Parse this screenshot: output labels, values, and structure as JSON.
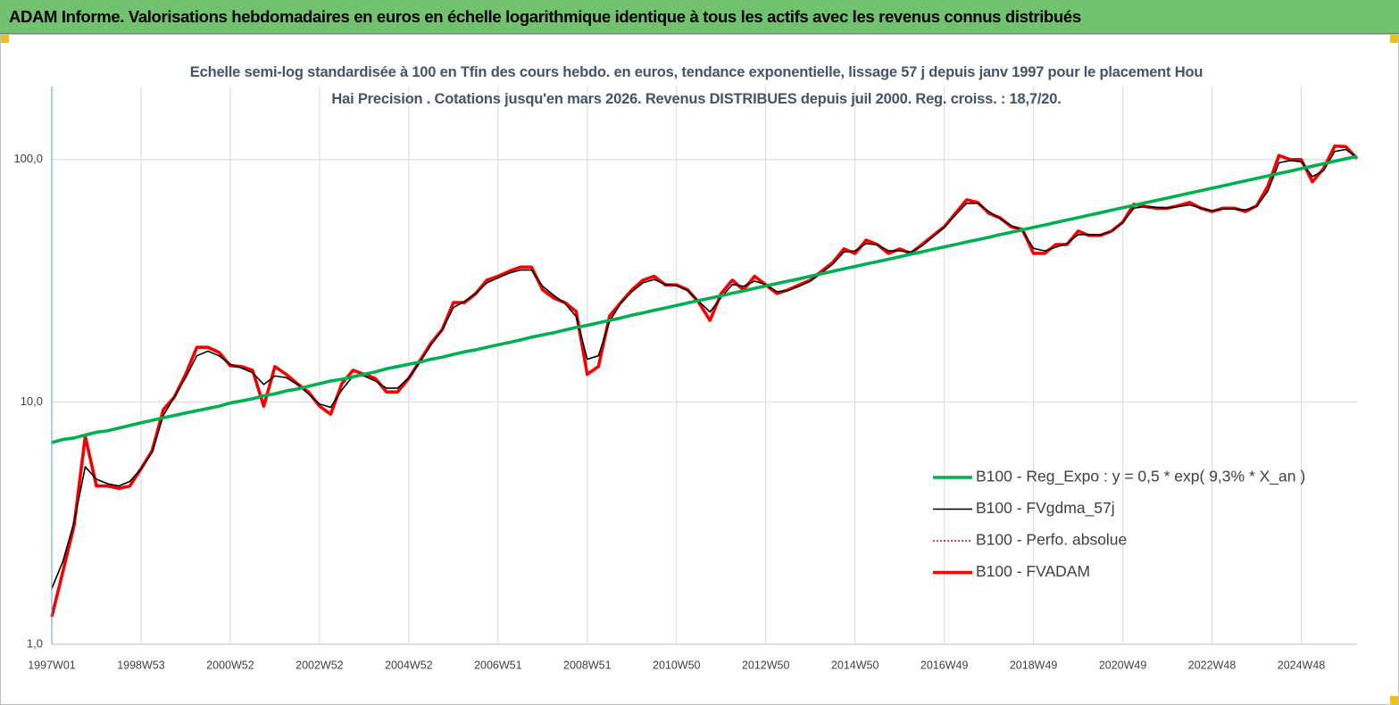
{
  "header": {
    "title": "ADAM Informe. Valorisations hebdomadaires en euros en échelle logarithmique identique à tous les actifs avec les revenus connus distribués"
  },
  "chart_data": {
    "type": "line",
    "title": "Echelle semi-log standardisée à 100 en Tfin des cours hebdo. en euros, tendance exponentielle, lissage 57 j depuis janv 1997 pour le placement Hou Hai Precision . Cotations jusqu'en mars 2026. Revenus DISTRIBUES depuis juil 2000. Reg. croiss. : 18,7/20.",
    "yscale": "log",
    "grid": true,
    "legend": "right",
    "ylim": [
      1,
      200
    ],
    "yticks": [
      {
        "value": 1,
        "label": "1,0"
      },
      {
        "value": 10,
        "label": "10,0"
      },
      {
        "value": 100,
        "label": "100,0"
      }
    ],
    "categories": [
      "1997W01",
      null,
      null,
      null,
      null,
      null,
      null,
      null,
      "1998W53",
      null,
      null,
      null,
      null,
      null,
      null,
      null,
      "2000W52",
      null,
      null,
      null,
      null,
      null,
      null,
      null,
      "2002W52",
      null,
      null,
      null,
      null,
      null,
      null,
      null,
      "2004W52",
      null,
      null,
      null,
      null,
      null,
      null,
      null,
      "2006W51",
      null,
      null,
      null,
      null,
      null,
      null,
      null,
      "2008W51",
      null,
      null,
      null,
      null,
      null,
      null,
      null,
      "2010W50",
      null,
      null,
      null,
      null,
      null,
      null,
      null,
      "2012W50",
      null,
      null,
      null,
      null,
      null,
      null,
      null,
      "2014W50",
      null,
      null,
      null,
      null,
      null,
      null,
      null,
      "2016W49",
      null,
      null,
      null,
      null,
      null,
      null,
      null,
      "2018W49",
      null,
      null,
      null,
      null,
      null,
      null,
      null,
      "2020W49",
      null,
      null,
      null,
      null,
      null,
      null,
      null,
      "2022W48",
      null,
      null,
      null,
      null,
      null,
      null,
      null,
      "2024W48",
      null,
      null,
      null,
      null,
      null
    ],
    "series": [
      {
        "name": "B100 - Reg_Expo : y = 0,5 * exp( 9,3% *  X_an )",
        "color": "#00b050",
        "line_style": "bold",
        "values": [
          6.8,
          7.0,
          7.1,
          7.3,
          7.5,
          7.6,
          7.8,
          8.0,
          8.2,
          8.4,
          8.6,
          8.8,
          9.0,
          9.2,
          9.4,
          9.6,
          9.9,
          10.1,
          10.3,
          10.6,
          10.8,
          11.1,
          11.3,
          11.6,
          11.9,
          12.2,
          12.4,
          12.7,
          13.0,
          13.3,
          13.7,
          14.0,
          14.3,
          14.6,
          15.0,
          15.3,
          15.7,
          16.1,
          16.4,
          16.8,
          17.2,
          17.6,
          18.0,
          18.5,
          18.9,
          19.3,
          19.8,
          20.3,
          20.7,
          21.2,
          21.7,
          22.2,
          22.8,
          23.3,
          23.9,
          24.4,
          25.0,
          25.6,
          26.2,
          26.8,
          27.4,
          28.1,
          28.7,
          29.4,
          30.1,
          30.8,
          31.5,
          32.2,
          33.0,
          33.8,
          34.6,
          35.4,
          36.2,
          37.1,
          37.9,
          38.8,
          39.7,
          40.7,
          41.6,
          42.6,
          43.6,
          44.6,
          45.7,
          46.7,
          47.8,
          49.0,
          50.1,
          51.3,
          52.5,
          53.7,
          55.0,
          56.3,
          57.6,
          59.0,
          60.3,
          61.8,
          63.3,
          64.7,
          66.3,
          67.8,
          69.4,
          71.0,
          72.7,
          74.4,
          76.2,
          77.9,
          79.8,
          81.7,
          83.6,
          85.6,
          87.6,
          89.6,
          91.7,
          93.9,
          96.1,
          98.4,
          100.7,
          103.0
        ]
      },
      {
        "name": "B100 - FVgdma_57j",
        "color": "#000000",
        "line_style": "thin",
        "values": [
          1.7,
          2.2,
          3.2,
          5.4,
          4.8,
          4.6,
          4.5,
          4.7,
          5.3,
          6.2,
          8.8,
          10.5,
          12.6,
          15.5,
          16.2,
          15.5,
          14.3,
          13.8,
          13.2,
          11.8,
          12.8,
          12.6,
          11.8,
          10.8,
          9.8,
          9.5,
          11.2,
          12.8,
          12.8,
          12.2,
          11.4,
          11.4,
          12.6,
          14.6,
          17.2,
          19.8,
          24.5,
          26,
          28,
          31,
          32.5,
          34,
          35,
          35,
          30,
          27.5,
          25.5,
          22.5,
          15,
          15.5,
          21.5,
          25.5,
          28.5,
          31,
          32,
          30.5,
          30.2,
          28.8,
          26,
          23.5,
          27,
          30.5,
          30,
          31.5,
          30.5,
          28.5,
          28.8,
          30,
          31.5,
          34,
          37,
          41.5,
          42,
          45,
          44.5,
          42,
          42,
          41.5,
          44,
          48,
          52.5,
          59,
          66,
          66,
          61,
          57,
          53.5,
          51,
          43,
          42,
          43.5,
          45,
          49,
          49,
          49,
          50.5,
          55,
          63,
          64,
          63.5,
          63,
          64,
          65,
          63,
          61.5,
          62.5,
          62.5,
          62,
          64,
          74,
          97,
          99,
          98,
          85,
          90,
          108,
          110,
          102
        ]
      },
      {
        "name": "B100 - Perfo. absolue",
        "color": "#e00000",
        "line_style": "dotted",
        "values": [
          1.3,
          2.0,
          3.1,
          7.2,
          4.5,
          4.5,
          4.4,
          4.5,
          5.3,
          6.3,
          9.3,
          10.5,
          13,
          16.8,
          16.8,
          16,
          14.1,
          14,
          13.5,
          9.6,
          14,
          13,
          11.9,
          11,
          9.6,
          8.9,
          11.9,
          13.5,
          13,
          12.5,
          11,
          11,
          12.5,
          14.8,
          17.5,
          19.9,
          25.7,
          25.7,
          28,
          31.8,
          33,
          34.6,
          36,
          36,
          29,
          26.8,
          25.7,
          23.6,
          13,
          14,
          22.6,
          25.7,
          29,
          31.8,
          33,
          30.4,
          30.4,
          29,
          25.7,
          21.7,
          28,
          31.8,
          29,
          33,
          30.4,
          28,
          29,
          30.4,
          31.8,
          34.6,
          37.6,
          42.8,
          41,
          46.5,
          44.6,
          41,
          42.8,
          41,
          44.6,
          48.6,
          52.8,
          60,
          68.2,
          66.5,
          60,
          57.5,
          52.8,
          51.5,
          41,
          41,
          44.6,
          44.6,
          50.7,
          48.6,
          48.6,
          50.7,
          55.2,
          65.4,
          64,
          63,
          63,
          64.5,
          66.5,
          63,
          61,
          63,
          63,
          61,
          64.5,
          77.5,
          104,
          100,
          100,
          80.9,
          91.8,
          113.6,
          113,
          101
        ]
      },
      {
        "name": "B100 - FVADAM",
        "color": "#ff0000",
        "line_style": "bold",
        "values": [
          1.3,
          2.0,
          3.1,
          7.2,
          4.5,
          4.5,
          4.4,
          4.5,
          5.3,
          6.3,
          9.3,
          10.5,
          13,
          16.8,
          16.8,
          16,
          14.1,
          14,
          13.5,
          9.6,
          14,
          13,
          11.9,
          11,
          9.6,
          8.9,
          11.9,
          13.5,
          13,
          12.5,
          11,
          11,
          12.5,
          14.8,
          17.5,
          19.9,
          25.7,
          25.7,
          28,
          31.8,
          33,
          34.6,
          36,
          36,
          29,
          26.8,
          25.7,
          23.6,
          13,
          14,
          22.6,
          25.7,
          29,
          31.8,
          33,
          30.4,
          30.4,
          29,
          25.7,
          21.7,
          28,
          31.8,
          29,
          33,
          30.4,
          28,
          29,
          30.4,
          31.8,
          34.6,
          37.6,
          42.8,
          41,
          46.5,
          44.6,
          41,
          42.8,
          41,
          44.6,
          48.6,
          52.8,
          60,
          68.2,
          66.5,
          60,
          57.5,
          52.8,
          51.5,
          41,
          41,
          44.6,
          44.6,
          50.7,
          48.6,
          48.6,
          50.7,
          55.2,
          65.4,
          64,
          63,
          63,
          64.5,
          66.5,
          63,
          61,
          63,
          63,
          61,
          64.5,
          77.5,
          104,
          100,
          100,
          80.9,
          91.8,
          113.6,
          113,
          101
        ]
      }
    ]
  }
}
